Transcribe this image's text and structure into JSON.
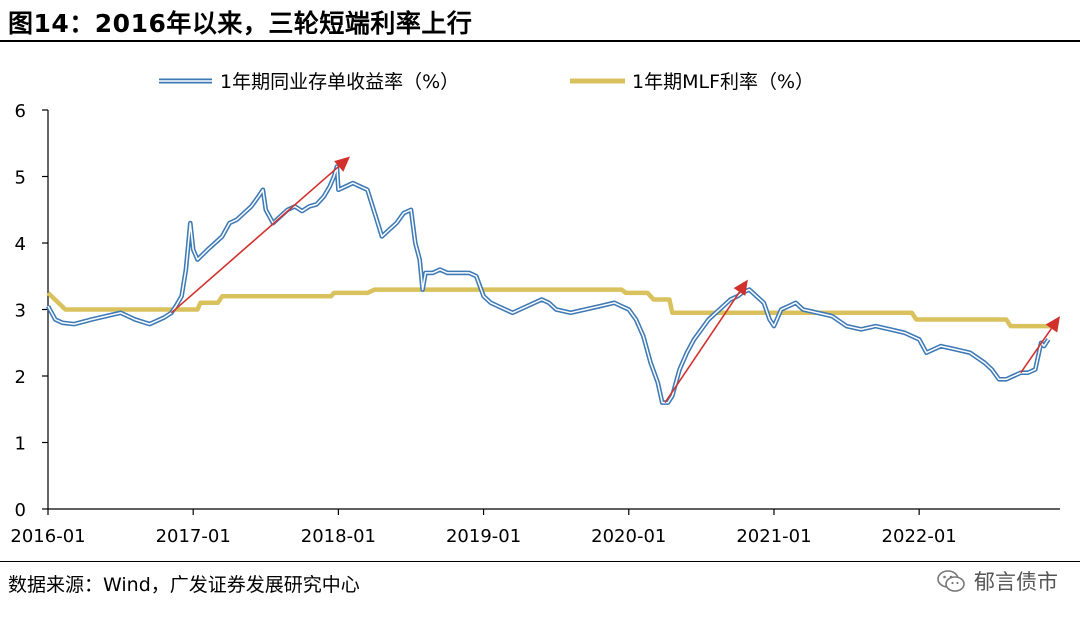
{
  "header": {
    "title": "图14：2016年以来，三轮短端利率上行"
  },
  "footer": {
    "source": "数据来源：Wind，广发证券发展研究中心",
    "watermark": "郁言债市"
  },
  "colors": {
    "series_ncd": "#3E7AB5",
    "series_mlf": "#D9C25E",
    "arrow": "#D2302B",
    "axis": "#000000"
  },
  "chart_data": {
    "type": "line",
    "title": "",
    "xlabel": "",
    "ylabel": "",
    "ylim": [
      0,
      6
    ],
    "yticks": [
      0,
      1,
      2,
      3,
      4,
      5,
      6
    ],
    "xlim": [
      2016.0,
      2022.97
    ],
    "xticks": [
      {
        "label": "2016-01",
        "x": 2016.0
      },
      {
        "label": "2017-01",
        "x": 2017.0
      },
      {
        "label": "2018-01",
        "x": 2018.0
      },
      {
        "label": "2019-01",
        "x": 2019.0
      },
      {
        "label": "2020-01",
        "x": 2020.0
      },
      {
        "label": "2021-01",
        "x": 2021.0
      },
      {
        "label": "2022-01",
        "x": 2022.0
      }
    ],
    "legend": {
      "placement": "top"
    },
    "series": [
      {
        "name": "1年期同业存单收益率（%）",
        "style": "double-line",
        "points": [
          [
            2016.0,
            3.05
          ],
          [
            2016.05,
            2.85
          ],
          [
            2016.1,
            2.8
          ],
          [
            2016.18,
            2.78
          ],
          [
            2016.3,
            2.85
          ],
          [
            2016.4,
            2.9
          ],
          [
            2016.5,
            2.95
          ],
          [
            2016.6,
            2.85
          ],
          [
            2016.7,
            2.78
          ],
          [
            2016.8,
            2.88
          ],
          [
            2016.85,
            2.95
          ],
          [
            2016.88,
            3.05
          ],
          [
            2016.92,
            3.2
          ],
          [
            2016.95,
            3.6
          ],
          [
            2016.98,
            4.3
          ],
          [
            2017.0,
            3.9
          ],
          [
            2017.03,
            3.75
          ],
          [
            2017.1,
            3.9
          ],
          [
            2017.15,
            4.0
          ],
          [
            2017.2,
            4.1
          ],
          [
            2017.25,
            4.3
          ],
          [
            2017.3,
            4.35
          ],
          [
            2017.35,
            4.45
          ],
          [
            2017.4,
            4.55
          ],
          [
            2017.45,
            4.7
          ],
          [
            2017.48,
            4.8
          ],
          [
            2017.5,
            4.5
          ],
          [
            2017.55,
            4.3
          ],
          [
            2017.6,
            4.4
          ],
          [
            2017.65,
            4.5
          ],
          [
            2017.7,
            4.55
          ],
          [
            2017.75,
            4.48
          ],
          [
            2017.8,
            4.55
          ],
          [
            2017.85,
            4.58
          ],
          [
            2017.9,
            4.7
          ],
          [
            2017.94,
            4.85
          ],
          [
            2017.97,
            5.0
          ],
          [
            2017.99,
            5.15
          ],
          [
            2018.0,
            4.8
          ],
          [
            2018.05,
            4.85
          ],
          [
            2018.1,
            4.9
          ],
          [
            2018.15,
            4.85
          ],
          [
            2018.2,
            4.8
          ],
          [
            2018.25,
            4.45
          ],
          [
            2018.3,
            4.1
          ],
          [
            2018.35,
            4.2
          ],
          [
            2018.4,
            4.3
          ],
          [
            2018.45,
            4.45
          ],
          [
            2018.5,
            4.5
          ],
          [
            2018.53,
            4.0
          ],
          [
            2018.56,
            3.75
          ],
          [
            2018.58,
            3.3
          ],
          [
            2018.6,
            3.55
          ],
          [
            2018.65,
            3.55
          ],
          [
            2018.7,
            3.6
          ],
          [
            2018.75,
            3.55
          ],
          [
            2018.8,
            3.55
          ],
          [
            2018.85,
            3.55
          ],
          [
            2018.9,
            3.55
          ],
          [
            2018.95,
            3.5
          ],
          [
            2019.0,
            3.2
          ],
          [
            2019.05,
            3.1
          ],
          [
            2019.1,
            3.05
          ],
          [
            2019.2,
            2.95
          ],
          [
            2019.3,
            3.05
          ],
          [
            2019.4,
            3.15
          ],
          [
            2019.45,
            3.1
          ],
          [
            2019.5,
            3.0
          ],
          [
            2019.6,
            2.95
          ],
          [
            2019.7,
            3.0
          ],
          [
            2019.8,
            3.05
          ],
          [
            2019.9,
            3.1
          ],
          [
            2019.95,
            3.05
          ],
          [
            2020.0,
            3.0
          ],
          [
            2020.05,
            2.85
          ],
          [
            2020.1,
            2.6
          ],
          [
            2020.15,
            2.2
          ],
          [
            2020.2,
            1.9
          ],
          [
            2020.23,
            1.6
          ],
          [
            2020.27,
            1.6
          ],
          [
            2020.3,
            1.7
          ],
          [
            2020.35,
            2.1
          ],
          [
            2020.4,
            2.35
          ],
          [
            2020.45,
            2.55
          ],
          [
            2020.5,
            2.7
          ],
          [
            2020.55,
            2.85
          ],
          [
            2020.6,
            2.95
          ],
          [
            2020.65,
            3.05
          ],
          [
            2020.7,
            3.15
          ],
          [
            2020.75,
            3.2
          ],
          [
            2020.78,
            3.25
          ],
          [
            2020.83,
            3.3
          ],
          [
            2020.88,
            3.2
          ],
          [
            2020.93,
            3.1
          ],
          [
            2020.97,
            2.85
          ],
          [
            2021.0,
            2.75
          ],
          [
            2021.05,
            3.0
          ],
          [
            2021.1,
            3.05
          ],
          [
            2021.15,
            3.1
          ],
          [
            2021.2,
            3.0
          ],
          [
            2021.3,
            2.95
          ],
          [
            2021.4,
            2.9
          ],
          [
            2021.5,
            2.75
          ],
          [
            2021.6,
            2.7
          ],
          [
            2021.7,
            2.75
          ],
          [
            2021.8,
            2.7
          ],
          [
            2021.9,
            2.65
          ],
          [
            2022.0,
            2.55
          ],
          [
            2022.05,
            2.35
          ],
          [
            2022.15,
            2.45
          ],
          [
            2022.25,
            2.4
          ],
          [
            2022.35,
            2.35
          ],
          [
            2022.45,
            2.2
          ],
          [
            2022.5,
            2.1
          ],
          [
            2022.55,
            1.95
          ],
          [
            2022.6,
            1.95
          ],
          [
            2022.65,
            2.0
          ],
          [
            2022.7,
            2.05
          ],
          [
            2022.75,
            2.05
          ],
          [
            2022.8,
            2.1
          ],
          [
            2022.84,
            2.5
          ],
          [
            2022.86,
            2.45
          ],
          [
            2022.89,
            2.55
          ]
        ]
      },
      {
        "name": "1年期MLF利率（%）",
        "style": "step",
        "points": [
          [
            2016.0,
            3.25
          ],
          [
            2016.12,
            3.0
          ],
          [
            2016.85,
            3.0
          ],
          [
            2016.9,
            3.0
          ],
          [
            2017.03,
            3.0
          ],
          [
            2017.05,
            3.1
          ],
          [
            2017.17,
            3.1
          ],
          [
            2017.2,
            3.2
          ],
          [
            2017.95,
            3.2
          ],
          [
            2017.97,
            3.25
          ],
          [
            2018.2,
            3.25
          ],
          [
            2018.25,
            3.3
          ],
          [
            2019.95,
            3.3
          ],
          [
            2019.98,
            3.25
          ],
          [
            2020.13,
            3.25
          ],
          [
            2020.17,
            3.15
          ],
          [
            2020.28,
            3.15
          ],
          [
            2020.3,
            2.95
          ],
          [
            2021.95,
            2.95
          ],
          [
            2021.98,
            2.85
          ],
          [
            2022.6,
            2.85
          ],
          [
            2022.63,
            2.75
          ],
          [
            2022.95,
            2.75
          ]
        ]
      }
    ],
    "annotations": [
      {
        "type": "arrow",
        "from": [
          2016.85,
          2.95
        ],
        "to": [
          2018.08,
          5.3
        ]
      },
      {
        "type": "arrow",
        "from": [
          2020.25,
          1.6
        ],
        "to": [
          2020.82,
          3.45
        ]
      },
      {
        "type": "arrow",
        "from": [
          2022.7,
          2.05
        ],
        "to": [
          2022.97,
          2.9
        ]
      }
    ]
  }
}
